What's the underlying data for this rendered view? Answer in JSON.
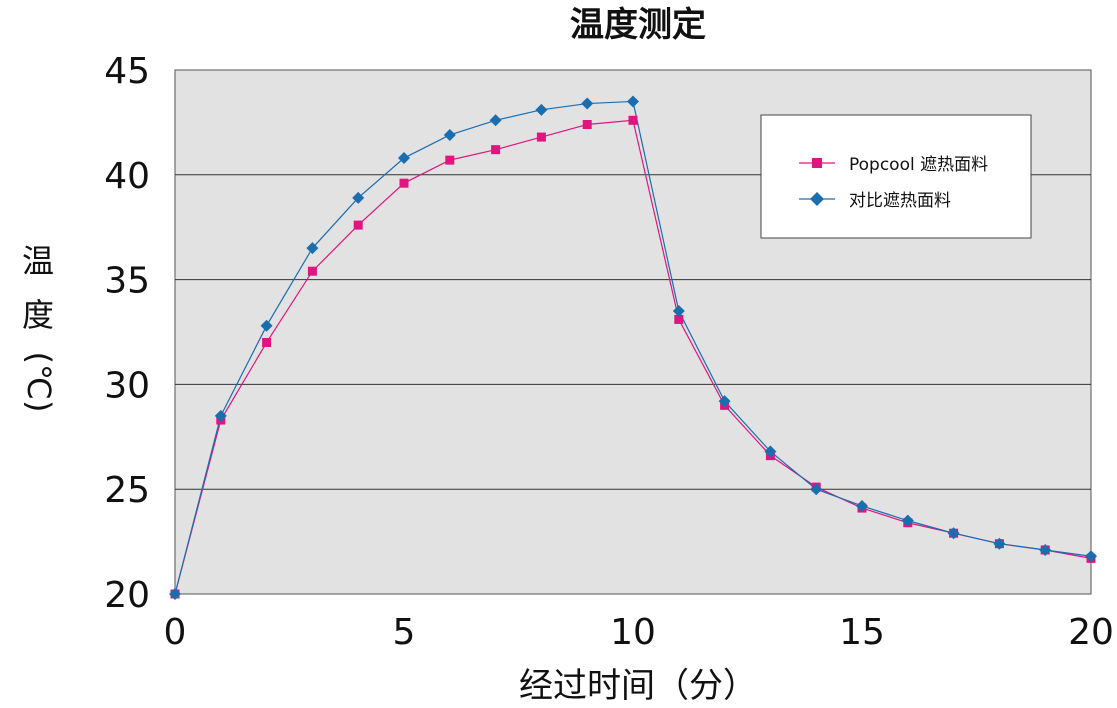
{
  "chart_data": {
    "type": "line",
    "title": "温度测定",
    "xlabel": "经过时间（分）",
    "ylabel": "温度(℃)",
    "ylabel_chars": [
      "温",
      "度",
      "(℃)"
    ],
    "xlim": [
      0,
      20
    ],
    "ylim": [
      20,
      45
    ],
    "x_ticks": [
      "0",
      "5",
      "10",
      "15",
      "20"
    ],
    "y_ticks": [
      "20",
      "25",
      "30",
      "35",
      "40",
      "45"
    ],
    "grid": "horizontal",
    "legend_position": "top-right",
    "x": [
      0,
      1,
      2,
      3,
      4,
      5,
      6,
      7,
      8,
      9,
      10,
      11,
      12,
      13,
      14,
      15,
      16,
      17,
      18,
      19,
      20
    ],
    "series": [
      {
        "name": "Popcool 遮热面料",
        "color": "#e0157f",
        "marker": "square",
        "values": [
          20.0,
          28.3,
          32.0,
          35.4,
          37.6,
          39.6,
          40.7,
          41.2,
          41.8,
          42.4,
          42.6,
          33.1,
          29.0,
          26.6,
          25.1,
          24.1,
          23.4,
          22.9,
          22.4,
          22.1,
          21.7
        ]
      },
      {
        "name": "对比遮热面料",
        "color": "#1a6eb0",
        "marker": "diamond",
        "values": [
          20.0,
          28.5,
          32.8,
          36.5,
          38.9,
          40.8,
          41.9,
          42.6,
          43.1,
          43.4,
          43.5,
          33.5,
          29.2,
          26.8,
          25.0,
          24.2,
          23.5,
          22.9,
          22.4,
          22.1,
          21.8
        ]
      }
    ]
  }
}
